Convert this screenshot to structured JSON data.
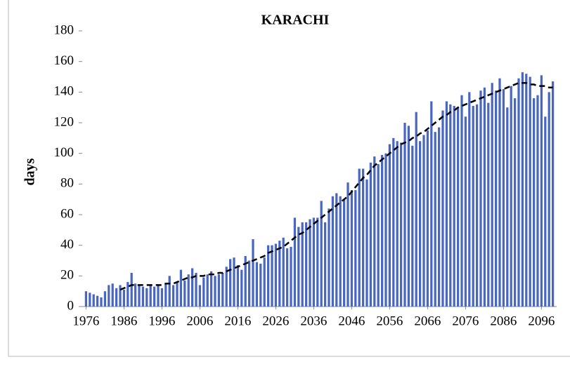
{
  "chart_data": {
    "type": "bar",
    "title": "KARACHI",
    "y_label": "days",
    "x": [
      1976,
      1977,
      1978,
      1979,
      1980,
      1981,
      1982,
      1983,
      1984,
      1985,
      1986,
      1987,
      1988,
      1989,
      1990,
      1991,
      1992,
      1993,
      1994,
      1995,
      1996,
      1997,
      1998,
      1999,
      2000,
      2001,
      2002,
      2003,
      2004,
      2005,
      2006,
      2007,
      2008,
      2009,
      2010,
      2011,
      2012,
      2013,
      2014,
      2015,
      2016,
      2017,
      2018,
      2019,
      2020,
      2021,
      2022,
      2023,
      2024,
      2025,
      2026,
      2027,
      2028,
      2029,
      2030,
      2031,
      2032,
      2033,
      2034,
      2035,
      2036,
      2037,
      2038,
      2039,
      2040,
      2041,
      2042,
      2043,
      2044,
      2045,
      2046,
      2047,
      2048,
      2049,
      2050,
      2051,
      2052,
      2053,
      2054,
      2055,
      2056,
      2057,
      2058,
      2059,
      2060,
      2061,
      2062,
      2063,
      2064,
      2065,
      2066,
      2067,
      2068,
      2069,
      2070,
      2071,
      2072,
      2073,
      2074,
      2075,
      2076,
      2077,
      2078,
      2079,
      2080,
      2081,
      2082,
      2083,
      2084,
      2085,
      2086,
      2087,
      2088,
      2089,
      2090,
      2091,
      2092,
      2093,
      2094,
      2095,
      2096,
      2097,
      2098,
      2099
    ],
    "series": [
      {
        "color": "#4a67c0",
        "values": [
          10,
          9,
          8,
          7,
          6,
          10,
          14,
          15,
          12,
          14,
          11,
          16,
          22,
          15,
          14,
          13,
          12,
          14,
          13,
          14,
          12,
          15,
          20,
          14,
          16,
          24,
          17,
          21,
          25,
          22,
          14,
          19,
          21,
          23,
          20,
          21,
          22,
          26,
          31,
          32,
          27,
          24,
          33,
          30,
          44,
          29,
          28,
          32,
          40,
          40,
          41,
          43,
          45,
          38,
          39,
          58,
          52,
          55,
          55,
          57,
          58,
          58,
          69,
          55,
          64,
          72,
          74,
          72,
          70,
          81,
          76,
          76,
          90,
          90,
          83,
          94,
          98,
          93,
          99,
          100,
          106,
          110,
          108,
          107,
          120,
          118,
          105,
          127,
          108,
          112,
          115,
          134,
          114,
          117,
          128,
          134,
          132,
          131,
          130,
          138,
          124,
          140,
          131,
          132,
          141,
          143,
          133,
          146,
          141,
          149,
          142,
          130,
          144,
          136,
          149,
          153,
          152,
          150,
          136,
          138,
          151,
          124,
          140,
          147
        ]
      },
      {
        "type": "line",
        "color": "#000000",
        "values": [
          null,
          null,
          null,
          null,
          null,
          null,
          null,
          null,
          null,
          11,
          12,
          13,
          14,
          14,
          14,
          14,
          14,
          14,
          14,
          14,
          14,
          15,
          15,
          15,
          16,
          17,
          18,
          19,
          19,
          20,
          20,
          20,
          21,
          21,
          21,
          22,
          22,
          23,
          24,
          25,
          26,
          27,
          28,
          29,
          30,
          31,
          32,
          33,
          35,
          36,
          37,
          38,
          39,
          41,
          43,
          45,
          47,
          48,
          50,
          52,
          54,
          56,
          58,
          60,
          62,
          64,
          66,
          68,
          70,
          72,
          75,
          78,
          81,
          84,
          86,
          89,
          92,
          94,
          96,
          98,
          100,
          102,
          104,
          106,
          107,
          108,
          110,
          111,
          113,
          114,
          116,
          118,
          120,
          122,
          124,
          125,
          127,
          128,
          130,
          131,
          132,
          133,
          134,
          135,
          136,
          137,
          138,
          139,
          140,
          141,
          142,
          143,
          144,
          145,
          146,
          146,
          146,
          145,
          145,
          144,
          144,
          144,
          143,
          143
        ]
      }
    ],
    "xlim": [
      1975,
      2100
    ],
    "xticks": [
      1976,
      1986,
      1996,
      2006,
      2016,
      2026,
      2036,
      2046,
      2056,
      2066,
      2076,
      2086,
      2096
    ],
    "ylim": [
      0,
      180
    ],
    "yticks": [
      0,
      20,
      40,
      60,
      80,
      100,
      120,
      140,
      160,
      180
    ]
  }
}
